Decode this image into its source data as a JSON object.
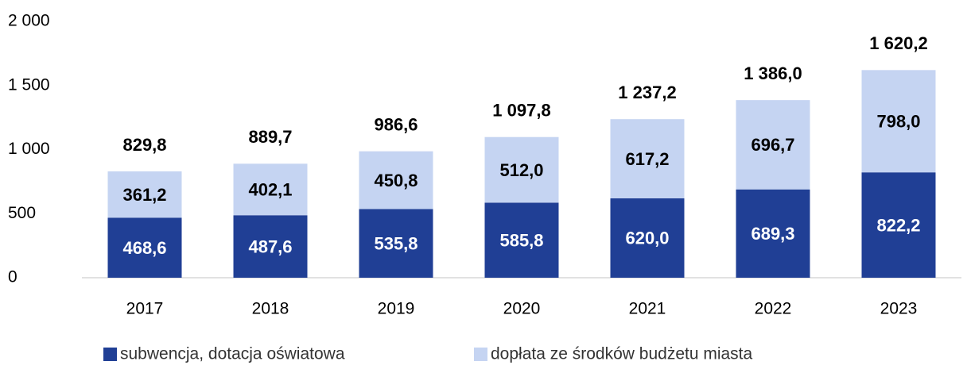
{
  "chart_data": {
    "type": "stacked_bar",
    "categories": [
      "2017",
      "2018",
      "2019",
      "2020",
      "2021",
      "2022",
      "2023"
    ],
    "series": [
      {
        "name": "subwencja, dotacja oświatowa",
        "color": "#203f95",
        "values": [
          468.6,
          487.6,
          535.8,
          585.8,
          620.0,
          689.3,
          822.2
        ],
        "value_labels": [
          "468,6",
          "487,6",
          "535,8",
          "585,8",
          "620,0",
          "689,3",
          "822,2"
        ]
      },
      {
        "name": "dopłata ze środków budżetu miasta",
        "color": "#c5d4f2",
        "values": [
          361.2,
          402.1,
          450.8,
          512.0,
          617.2,
          696.7,
          798.0
        ],
        "value_labels": [
          "361,2",
          "402,1",
          "450,8",
          "512,0",
          "617,2",
          "696,7",
          "798,0"
        ]
      }
    ],
    "totals": {
      "values": [
        829.8,
        889.7,
        986.6,
        1097.8,
        1237.2,
        1386.0,
        1620.2
      ],
      "value_labels": [
        "829,8",
        "889,7",
        "986,6",
        "1 097,8",
        "1 237,2",
        "1 386,0",
        "1 620,2"
      ]
    },
    "ylim": [
      0,
      2000
    ],
    "yticks": [
      0,
      500,
      {
        "value": 1000,
        "label": "1 000"
      },
      {
        "value": 1500,
        "label": "1 500"
      },
      {
        "value": 2000,
        "label": "2 000"
      }
    ],
    "grid": false
  }
}
